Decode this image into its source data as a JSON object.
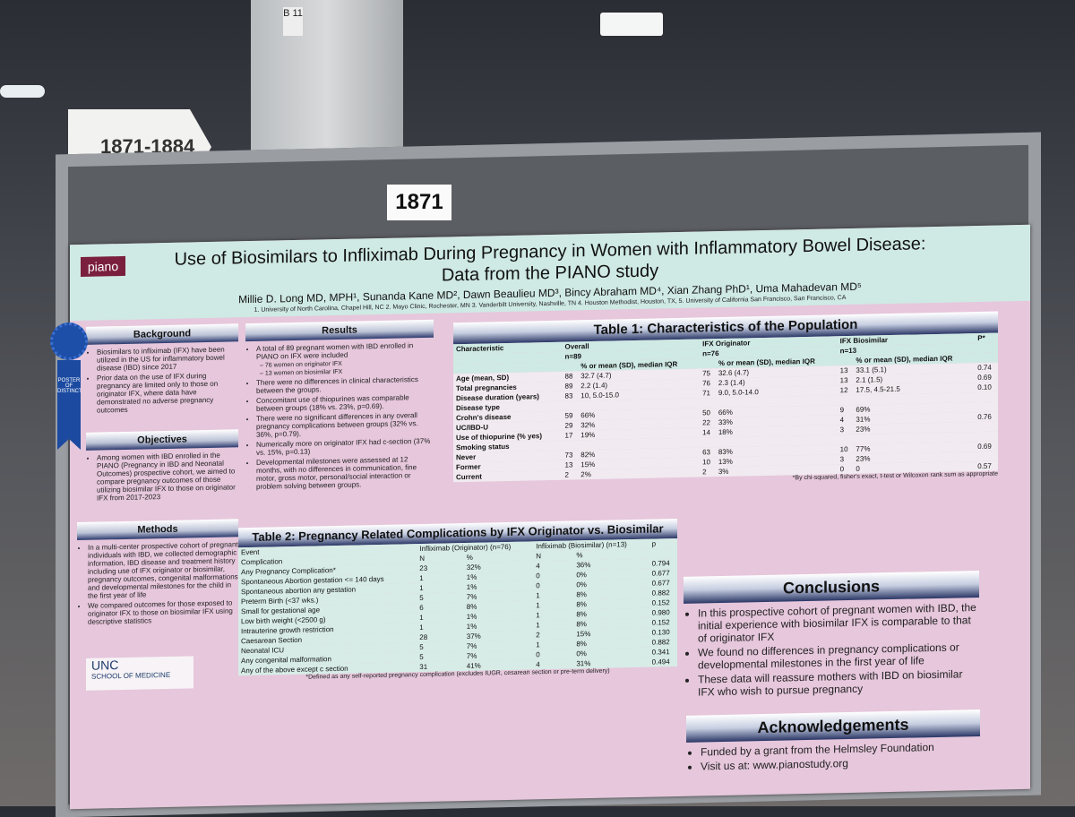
{
  "signs": {
    "aisle": "1871-1884",
    "board": "1871",
    "pillar": "B 11"
  },
  "ribbon": "POSTER OF DISTINCTION",
  "poster": {
    "logo": "piano",
    "title_line1": "Use of Biosimilars to Infliximab During Pregnancy in Women with Inflammatory Bowel Disease:",
    "title_line2": "Data from the PIANO study",
    "authors": "Millie D. Long MD, MPH¹, Sunanda Kane MD², Dawn Beaulieu MD³, Bincy Abraham MD⁴, Xian Zhang PhD¹, Uma Mahadevan MD⁵",
    "affiliations": "1. University of North Carolina, Chapel Hill, NC 2. Mayo Clinic, Rochester, MN 3. Vanderbilt University, Nashville, TN 4. Houston Methodist, Houston, TX, 5. University of California San Francisco, San Francisco, CA",
    "background": {
      "title": "Background",
      "items": [
        {
          "text": "Biosimilars to infliximab (IFX) have been utilized in the US for inflammatory bowel disease (IBD) since 2017"
        },
        {
          "text": "Prior data on the use of IFX during pregnancy are limited only to those on originator IFX, where data have demonstrated no adverse pregnancy outcomes"
        }
      ]
    },
    "objectives": {
      "title": "Objectives",
      "items": [
        {
          "text": "Among women with IBD enrolled in the PIANO (Pregnancy in IBD and Neonatal Outcomes) prospective cohort, we aimed to compare pregnancy outcomes of those utilizing biosimilar IFX to those on originator IFX from 2017-2023"
        }
      ]
    },
    "methods": {
      "title": "Methods",
      "items": [
        {
          "text": "In a multi-center prospective cohort of pregnant individuals with IBD, we collected demographic information, IBD disease and treatment history including use of IFX originator or biosimilar, pregnancy outcomes, congenital malformations and developmental milestones for the child in the first year of life"
        },
        {
          "text": "We compared outcomes for those exposed to originator IFX to those on biosimilar IFX using descriptive statistics"
        }
      ]
    },
    "results": {
      "title": "Results",
      "items": [
        {
          "text": "A total of 89 pregnant women with IBD enrolled in PIANO on IFX were included",
          "sub": [
            "– 76 women on originator IFX",
            "– 13 women on biosimilar IFX"
          ]
        },
        {
          "text": "There were no differences in clinical characteristics between the groups."
        },
        {
          "text": "Concomitant use of thiopurines was comparable between groups (18% vs. 23%, p=0.69)."
        },
        {
          "text": "There were no significant differences in any overall pregnancy complications between groups (32% vs. 36%, p=0.79)."
        },
        {
          "text": "Numerically more on originator IFX had c-section (37% vs. 15%, p=0.13)"
        },
        {
          "text": "Developmental milestones were assessed at 12 months, with no differences in communication, fine motor, gross motor, personal/social interaction or problem solving between groups."
        }
      ]
    },
    "table1": {
      "title": "Table 1: Characteristics of the Population",
      "header": [
        "Characteristic",
        "Overall",
        "IFX Originator",
        "IFX Biosimilar",
        "P*"
      ],
      "n": [
        "n=89",
        "n=76",
        "n=13"
      ],
      "subheader": [
        "% or mean (SD), median IQR",
        "% or mean (SD), median IQR",
        "% or mean (SD), median IQR"
      ],
      "rows": [
        [
          "Age (mean, SD)",
          "88",
          "32.7 (4.7)",
          "75",
          "32.6 (4.7)",
          "13",
          "33.1 (5.1)",
          "0.74"
        ],
        [
          "Total pregnancies",
          "89",
          "2.2 (1.4)",
          "76",
          "2.3 (1.4)",
          "13",
          "2.1 (1.5)",
          "0.69"
        ],
        [
          "Disease duration (years)",
          "83",
          "10, 5.0-15.0",
          "71",
          "9.0, 5.0-14.0",
          "12",
          "17.5, 4.5-21.5",
          "0.10"
        ],
        [
          "Disease type",
          null,
          null,
          null,
          null,
          null,
          null,
          null
        ],
        [
          "Crohn's disease",
          "59",
          "66%",
          "50",
          "66%",
          "9",
          "69%",
          null
        ],
        [
          "UC/IBD-U",
          "29",
          "32%",
          "22",
          "33%",
          "4",
          "31%",
          "0.76"
        ],
        [
          "Use of thiopurine (% yes)",
          "17",
          "19%",
          "14",
          "18%",
          "3",
          "23%",
          null
        ],
        [
          "Smoking status",
          null,
          null,
          null,
          null,
          null,
          null,
          null
        ],
        [
          "Never",
          "73",
          "82%",
          "63",
          "83%",
          "10",
          "77%",
          "0.69"
        ],
        [
          "Former",
          "13",
          "15%",
          "10",
          "13%",
          "3",
          "23%",
          null
        ],
        [
          "Current",
          "2",
          "2%",
          "2",
          "3%",
          "0",
          "0",
          "0.57"
        ]
      ],
      "footnote": "*By chi-squared, fisher's exact, t-test or Wilcoxon rank sum as appropriate"
    },
    "table2": {
      "title": "Table 2: Pregnancy Related Complications by IFX Originator vs. Biosimilar",
      "header": [
        "Event",
        "Infliximab (Originator) (n=76)",
        "Infliximab (Biosimilar) (n=13)",
        "p"
      ],
      "subheader": [
        "Complication",
        "N",
        "%",
        "N",
        "%"
      ],
      "rows": [
        [
          "Any Pregnancy Complication*",
          "23",
          "32%",
          "4",
          "36%",
          "0.794"
        ],
        [
          "Spontaneous Abortion gestation <= 140 days",
          "1",
          "1%",
          "0",
          "0%",
          "0.677"
        ],
        [
          "Spontaneous abortion any gestation",
          "1",
          "1%",
          "0",
          "0%",
          "0.677"
        ],
        [
          "Preterm Birth (<37 wks.)",
          "5",
          "7%",
          "1",
          "8%",
          "0.882"
        ],
        [
          "Small for gestational age",
          "6",
          "8%",
          "1",
          "8%",
          "0.152"
        ],
        [
          "Low birth weight (<2500 g)",
          "1",
          "1%",
          "1",
          "8%",
          "0.980"
        ],
        [
          "Intrauterine growth restriction",
          "1",
          "1%",
          "1",
          "8%",
          "0.152"
        ],
        [
          "Caesarean Section",
          "28",
          "37%",
          "2",
          "15%",
          "0.130"
        ],
        [
          "Neonatal ICU",
          "5",
          "7%",
          "1",
          "8%",
          "0.882"
        ],
        [
          "Any congenital malformation",
          "5",
          "7%",
          "0",
          "0%",
          "0.341"
        ],
        [
          "Any of the above except c section",
          "31",
          "41%",
          "4",
          "31%",
          "0.494"
        ]
      ],
      "footnote": "*Defined as any self-reported pregnancy complication (excludes IUGR, cesarean section or pre-term delivery)"
    },
    "conclusions": {
      "title": "Conclusions",
      "items": [
        {
          "text": "In this prospective cohort of pregnant women with IBD, the initial experience with biosimilar IFX is comparable to that of originator IFX"
        },
        {
          "text": "We found no differences in pregnancy complications or developmental milestones in the first year of life"
        },
        {
          "text": "These data will reassure mothers with IBD on biosimilar IFX who wish to pursue pregnancy"
        }
      ]
    },
    "acknowledgements": {
      "title": "Acknowledgements",
      "items": [
        {
          "text": "Funded by a grant from the Helmsley Foundation"
        },
        {
          "text": "Visit us at: www.pianostudy.org"
        }
      ]
    },
    "unc": {
      "name": "UNC",
      "school": "SCHOOL OF MEDICINE"
    }
  }
}
